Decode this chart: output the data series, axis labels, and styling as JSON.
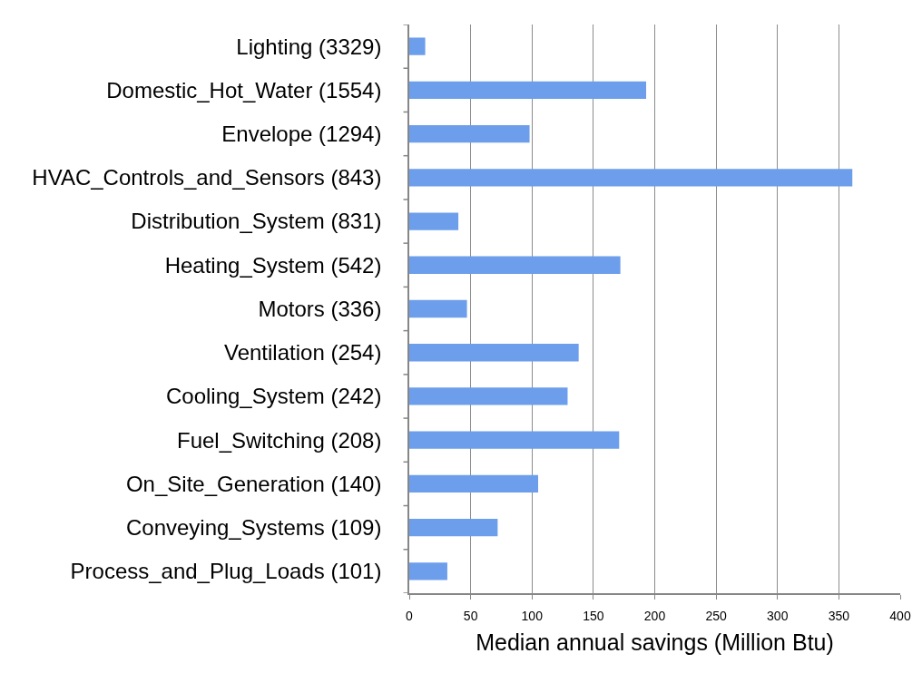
{
  "chart_data": {
    "type": "bar",
    "orientation": "horizontal",
    "categories": [
      "Lighting (3329)",
      "Domestic_Hot_Water (1554)",
      "Envelope (1294)",
      "HVAC_Controls_and_Sensors (843)",
      "Distribution_System (831)",
      "Heating_System (542)",
      "Motors (336)",
      "Ventilation (254)",
      "Cooling_System (242)",
      "Fuel_Switching (208)",
      "On_Site_Generation (140)",
      "Conveying_Systems (109)",
      "Process_and_Plug_Loads (101)"
    ],
    "values": [
      13,
      193,
      98,
      361,
      40,
      172,
      47,
      138,
      129,
      171,
      105,
      72,
      31
    ],
    "color": "#6d9eeb",
    "xlabel": "Median annual savings (Million Btu)",
    "xlim": [
      0,
      400
    ],
    "xticks": [
      0,
      50,
      100,
      150,
      200,
      250,
      300,
      350,
      400
    ],
    "grid": "x"
  }
}
